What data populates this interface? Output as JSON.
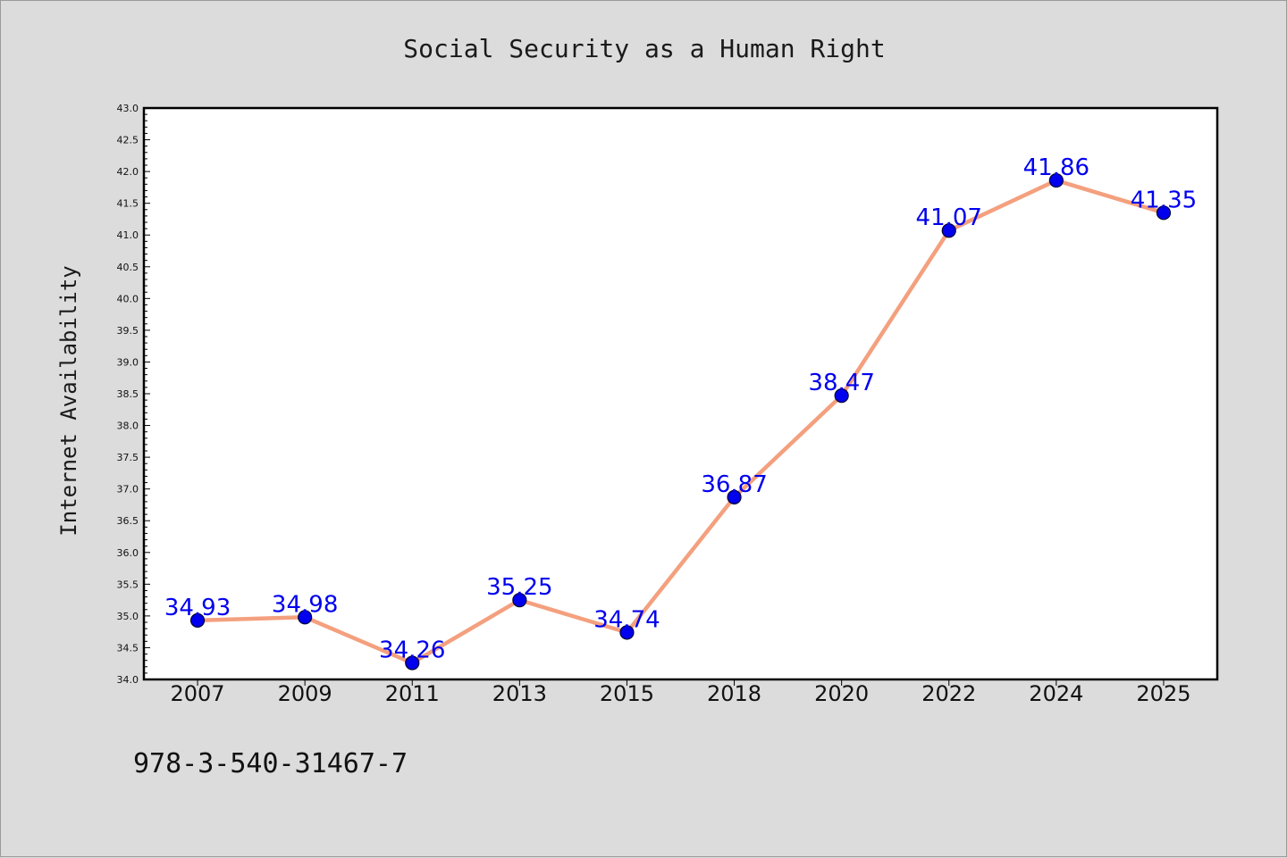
{
  "chart_data": {
    "type": "line",
    "title": "Social Security as a Human Right",
    "xlabel": "",
    "ylabel": "Internet Availability",
    "categories": [
      "2007",
      "2009",
      "2011",
      "2013",
      "2015",
      "2018",
      "2020",
      "2022",
      "2024",
      "2025"
    ],
    "series": [
      {
        "values": [
          34.93,
          34.98,
          34.26,
          35.25,
          34.74,
          36.87,
          38.47,
          41.07,
          41.86,
          41.35
        ],
        "labels": [
          "34.93",
          "34.98",
          "34.26",
          "35.25",
          "34.74",
          "36.87",
          "38.47",
          "41.07",
          "41.86",
          "41.35"
        ]
      }
    ],
    "ylim": [
      34.0,
      43.0
    ],
    "yticks": [
      "34.0",
      "34.5",
      "35.0",
      "35.5",
      "36.0",
      "36.5",
      "37.0",
      "37.5",
      "38.0",
      "38.5",
      "39.0",
      "39.5",
      "40.0",
      "40.5",
      "41.0",
      "41.5",
      "42.0",
      "42.5",
      "43.0"
    ],
    "grid": false,
    "colors": {
      "line": "#f4a07e",
      "marker": "#0000ee",
      "marker_edge": "#000033",
      "data_label": "#0000ee",
      "plot_background": "#ffffff",
      "figure_background": "#dcdcdc"
    }
  },
  "footnote": "978-3-540-31467-7"
}
